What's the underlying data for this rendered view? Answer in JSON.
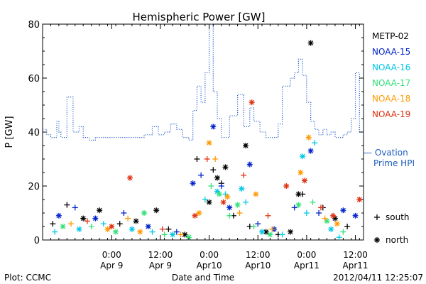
{
  "chart_data": {
    "type": "scatter",
    "title": "Hemispheric Power [GW]",
    "ylabel": "P [GW]",
    "xlabel": "Date and Time",
    "ylim": [
      0,
      80
    ],
    "xlim": [
      "2012-04-08T07:00",
      "2012-04-11T14:00"
    ],
    "y_ticks": [
      0,
      20,
      40,
      60,
      80
    ],
    "x_ticks": [
      {
        "t": "2012-04-09T00:00",
        "time": "0:00",
        "date": "Apr 9"
      },
      {
        "t": "2012-04-09T12:00",
        "time": "12:00",
        "date": "Apr 9"
      },
      {
        "t": "2012-04-10T00:00",
        "time": "0:00",
        "date": "Apr10"
      },
      {
        "t": "2012-04-10T12:00",
        "time": "12:00",
        "date": "Apr10"
      },
      {
        "t": "2012-04-11T00:00",
        "time": "0:00",
        "date": "Apr11"
      },
      {
        "t": "2012-04-11T12:00",
        "time": "12:00",
        "date": "Apr11"
      }
    ],
    "legend": {
      "placement": "right"
    },
    "marker_legend": [
      {
        "symbol": "+",
        "label": "south"
      },
      {
        "symbol": "*",
        "label": "north"
      }
    ],
    "series": [
      {
        "name": "METP-02",
        "color": "#000000",
        "points": [
          [
            "2012-04-08T09:30",
            6,
            "+"
          ],
          [
            "2012-04-08T13:00",
            13,
            "+"
          ],
          [
            "2012-04-08T17:00",
            8,
            "*"
          ],
          [
            "2012-04-08T21:00",
            11,
            "*"
          ],
          [
            "2012-04-09T02:00",
            6,
            "+"
          ],
          [
            "2012-04-09T06:00",
            7,
            "*"
          ],
          [
            "2012-04-09T11:00",
            11,
            "*"
          ],
          [
            "2012-04-09T14:00",
            4,
            "+"
          ],
          [
            "2012-04-09T18:00",
            2,
            "*"
          ],
          [
            "2012-04-09T21:00",
            30,
            "+"
          ],
          [
            "2012-04-10T00:00",
            14,
            "*"
          ],
          [
            "2012-04-10T01:00",
            26,
            "+"
          ],
          [
            "2012-04-10T02:00",
            23,
            "*"
          ],
          [
            "2012-04-10T03:00",
            21,
            "+"
          ],
          [
            "2012-04-10T04:00",
            27,
            "*"
          ],
          [
            "2012-04-10T06:00",
            9,
            "+"
          ],
          [
            "2012-04-10T09:00",
            35,
            "*"
          ],
          [
            "2012-04-10T10:00",
            5,
            "+"
          ],
          [
            "2012-04-10T14:00",
            3,
            "*"
          ],
          [
            "2012-04-10T17:00",
            2,
            "+"
          ],
          [
            "2012-04-10T20:00",
            3,
            "*"
          ],
          [
            "2012-04-10T22:00",
            17,
            "*"
          ],
          [
            "2012-04-10T23:00",
            17,
            "+"
          ],
          [
            "2012-04-11T01:00",
            73,
            "*"
          ],
          [
            "2012-04-11T04:00",
            12,
            "+"
          ],
          [
            "2012-04-11T07:00",
            8,
            "*"
          ],
          [
            "2012-04-11T10:00",
            5,
            "+"
          ]
        ]
      },
      {
        "name": "NOAA-15",
        "color": "#0022cc",
        "points": [
          [
            "2012-04-08T11:00",
            9,
            "*"
          ],
          [
            "2012-04-08T15:00",
            12,
            "+"
          ],
          [
            "2012-04-08T20:00",
            8,
            "*"
          ],
          [
            "2012-04-09T03:00",
            10,
            "+"
          ],
          [
            "2012-04-09T09:00",
            5,
            "*"
          ],
          [
            "2012-04-09T16:00",
            3,
            "+"
          ],
          [
            "2012-04-09T20:00",
            21,
            "*"
          ],
          [
            "2012-04-09T22:00",
            24,
            "+"
          ],
          [
            "2012-04-10T01:00",
            42,
            "*"
          ],
          [
            "2012-04-10T03:00",
            20,
            "+"
          ],
          [
            "2012-04-10T05:00",
            12,
            "*"
          ],
          [
            "2012-04-10T10:00",
            28,
            "*"
          ],
          [
            "2012-04-10T12:00",
            6,
            "+"
          ],
          [
            "2012-04-10T16:00",
            4,
            "*"
          ],
          [
            "2012-04-10T21:00",
            12,
            "+"
          ],
          [
            "2012-04-11T01:00",
            33,
            "*"
          ],
          [
            "2012-04-11T03:00",
            10,
            "+"
          ],
          [
            "2012-04-11T09:00",
            11,
            "*"
          ],
          [
            "2012-04-11T12:00",
            9,
            "*"
          ]
        ]
      },
      {
        "name": "NOAA-16",
        "color": "#00c8e6",
        "points": [
          [
            "2012-04-08T10:00",
            3,
            "+"
          ],
          [
            "2012-04-08T16:00",
            4,
            "*"
          ],
          [
            "2012-04-08T22:00",
            6,
            "+"
          ],
          [
            "2012-04-09T05:00",
            4,
            "*"
          ],
          [
            "2012-04-09T10:00",
            3,
            "+"
          ],
          [
            "2012-04-09T15:00",
            2,
            "*"
          ],
          [
            "2012-04-09T23:00",
            15,
            "+"
          ],
          [
            "2012-04-10T02:00",
            18,
            "*"
          ],
          [
            "2012-04-10T04:00",
            17,
            "+"
          ],
          [
            "2012-04-10T08:00",
            19,
            "*"
          ],
          [
            "2012-04-10T09:00",
            14,
            "+"
          ],
          [
            "2012-04-10T13:00",
            3,
            "*"
          ],
          [
            "2012-04-10T18:00",
            2,
            "+"
          ],
          [
            "2012-04-10T23:00",
            31,
            "*"
          ],
          [
            "2012-04-11T00:00",
            10,
            "+"
          ],
          [
            "2012-04-11T02:00",
            36,
            "+"
          ],
          [
            "2012-04-11T06:00",
            4,
            "*"
          ],
          [
            "2012-04-11T08:00",
            1,
            "+"
          ]
        ]
      },
      {
        "name": "NOAA-17",
        "color": "#33e07a",
        "points": [
          [
            "2012-04-08T12:00",
            5,
            "*"
          ],
          [
            "2012-04-08T19:00",
            5,
            "+"
          ],
          [
            "2012-04-09T01:00",
            3,
            "*"
          ],
          [
            "2012-04-09T08:00",
            10,
            "*"
          ],
          [
            "2012-04-09T13:00",
            2,
            "+"
          ],
          [
            "2012-04-09T19:00",
            1,
            "*"
          ],
          [
            "2012-04-10T00:30",
            20,
            "+"
          ],
          [
            "2012-04-10T02:30",
            17,
            "*"
          ],
          [
            "2012-04-10T05:00",
            9,
            "+"
          ],
          [
            "2012-04-10T07:00",
            13,
            "*"
          ],
          [
            "2012-04-10T11:00",
            5,
            "+"
          ],
          [
            "2012-04-10T15:00",
            2,
            "*"
          ],
          [
            "2012-04-10T22:00",
            13,
            "*"
          ],
          [
            "2012-04-11T01:30",
            14,
            "+"
          ],
          [
            "2012-04-11T05:00",
            7,
            "*"
          ],
          [
            "2012-04-11T09:00",
            3,
            "+"
          ]
        ]
      },
      {
        "name": "NOAA-18",
        "color": "#ff9900",
        "points": [
          [
            "2012-04-08T14:00",
            6,
            "+"
          ],
          [
            "2012-04-08T23:00",
            4,
            "*"
          ],
          [
            "2012-04-09T04:00",
            8,
            "+"
          ],
          [
            "2012-04-09T07:00",
            3,
            "*"
          ],
          [
            "2012-04-09T17:00",
            2,
            "+"
          ],
          [
            "2012-04-09T21:30",
            10,
            "*"
          ],
          [
            "2012-04-10T00:00",
            36,
            "*"
          ],
          [
            "2012-04-10T01:30",
            30,
            "+"
          ],
          [
            "2012-04-10T04:30",
            16,
            "*"
          ],
          [
            "2012-04-10T07:30",
            10,
            "+"
          ],
          [
            "2012-04-10T11:30",
            17,
            "*"
          ],
          [
            "2012-04-10T15:30",
            4,
            "+"
          ],
          [
            "2012-04-10T22:30",
            25,
            "*"
          ],
          [
            "2012-04-11T00:30",
            38,
            "*"
          ],
          [
            "2012-04-11T04:30",
            8,
            "+"
          ],
          [
            "2012-04-11T07:30",
            6,
            "*"
          ]
        ]
      },
      {
        "name": "NOAA-19",
        "color": "#e03010",
        "points": [
          [
            "2012-04-08T18:00",
            7,
            "+"
          ],
          [
            "2012-04-09T00:00",
            5,
            "*"
          ],
          [
            "2012-04-09T04:30",
            23,
            "*"
          ],
          [
            "2012-04-09T12:30",
            4,
            "+"
          ],
          [
            "2012-04-09T20:30",
            9,
            "*"
          ],
          [
            "2012-04-09T23:30",
            30,
            "+"
          ],
          [
            "2012-04-10T03:30",
            14,
            "*"
          ],
          [
            "2012-04-10T08:30",
            24,
            "+"
          ],
          [
            "2012-04-10T10:30",
            51,
            "*"
          ],
          [
            "2012-04-10T14:30",
            9,
            "+"
          ],
          [
            "2012-04-10T19:00",
            20,
            "*"
          ],
          [
            "2012-04-10T23:30",
            22,
            "*"
          ],
          [
            "2012-04-11T03:30",
            12,
            "+"
          ],
          [
            "2012-04-11T06:30",
            9,
            "*"
          ],
          [
            "2012-04-11T13:00",
            15,
            "*"
          ]
        ]
      }
    ],
    "hpi_series": {
      "name": "Ovation Prime HPI",
      "legend_label": "— Ovation Prime HPI",
      "color": "#3366cc",
      "style": "dotted-step",
      "points": [
        [
          "2012-04-08T07:00",
          41
        ],
        [
          "2012-04-08T08:00",
          39
        ],
        [
          "2012-04-08T09:00",
          38
        ],
        [
          "2012-04-08T10:30",
          44
        ],
        [
          "2012-04-08T11:00",
          40
        ],
        [
          "2012-04-08T11:30",
          38
        ],
        [
          "2012-04-08T13:00",
          53
        ],
        [
          "2012-04-08T14:30",
          40
        ],
        [
          "2012-04-08T16:00",
          42
        ],
        [
          "2012-04-08T17:00",
          38
        ],
        [
          "2012-04-08T18:30",
          37
        ],
        [
          "2012-04-08T20:00",
          38
        ],
        [
          "2012-04-09T04:00",
          38
        ],
        [
          "2012-04-09T08:00",
          39
        ],
        [
          "2012-04-09T10:00",
          42
        ],
        [
          "2012-04-09T11:30",
          39
        ],
        [
          "2012-04-09T13:00",
          40
        ],
        [
          "2012-04-09T14:30",
          43
        ],
        [
          "2012-04-09T16:00",
          41
        ],
        [
          "2012-04-09T17:30",
          38
        ],
        [
          "2012-04-09T19:00",
          37
        ],
        [
          "2012-04-09T20:00",
          48
        ],
        [
          "2012-04-09T21:00",
          57
        ],
        [
          "2012-04-09T22:00",
          51
        ],
        [
          "2012-04-09T23:00",
          62
        ],
        [
          "2012-04-10T00:00",
          80
        ],
        [
          "2012-04-10T01:00",
          55
        ],
        [
          "2012-04-10T02:00",
          45
        ],
        [
          "2012-04-10T03:00",
          38
        ],
        [
          "2012-04-10T05:00",
          46
        ],
        [
          "2012-04-10T07:00",
          54
        ],
        [
          "2012-04-10T08:30",
          42
        ],
        [
          "2012-04-10T10:00",
          49
        ],
        [
          "2012-04-10T11:00",
          44
        ],
        [
          "2012-04-10T12:30",
          40
        ],
        [
          "2012-04-10T14:00",
          38
        ],
        [
          "2012-04-10T16:00",
          38
        ],
        [
          "2012-04-10T17:00",
          43
        ],
        [
          "2012-04-10T18:00",
          57
        ],
        [
          "2012-04-10T20:00",
          60
        ],
        [
          "2012-04-10T21:00",
          62
        ],
        [
          "2012-04-10T22:00",
          67
        ],
        [
          "2012-04-10T23:00",
          61
        ],
        [
          "2012-04-11T00:00",
          51
        ],
        [
          "2012-04-11T01:00",
          44
        ],
        [
          "2012-04-11T02:00",
          41
        ],
        [
          "2012-04-11T03:00",
          39
        ],
        [
          "2012-04-11T04:00",
          41
        ],
        [
          "2012-04-11T05:00",
          39
        ],
        [
          "2012-04-11T06:00",
          40
        ],
        [
          "2012-04-11T07:00",
          38
        ],
        [
          "2012-04-11T09:00",
          39
        ],
        [
          "2012-04-11T10:00",
          40
        ],
        [
          "2012-04-11T11:00",
          45
        ],
        [
          "2012-04-11T12:00",
          62
        ],
        [
          "2012-04-11T13:00",
          40
        ],
        [
          "2012-04-11T14:00",
          39
        ]
      ]
    }
  },
  "footer": {
    "plot_label": "Plot: CCMC",
    "timestamp": "2012/04/11 12:25:07"
  }
}
